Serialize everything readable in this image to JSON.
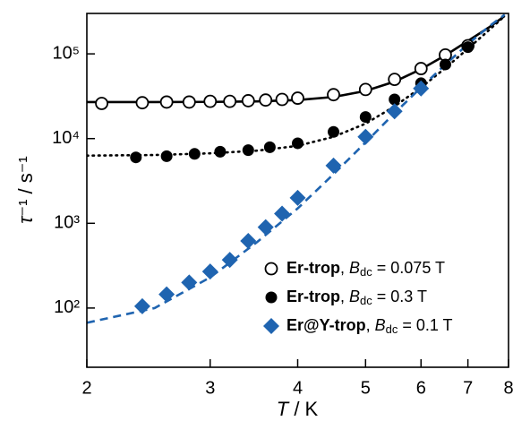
{
  "chart_data": {
    "type": "scatter",
    "xlabel": {
      "symbol": "T",
      "unit": " / K"
    },
    "ylabel": {
      "symbol": "τ",
      "unit": "⁻¹ / s⁻¹"
    },
    "xscale": "log",
    "yscale": "log",
    "xlim": [
      2,
      8
    ],
    "ylim": [
      20,
      300000
    ],
    "xticks": [
      2,
      3,
      4,
      5,
      6,
      7,
      8
    ],
    "yticks": [
      {
        "value": 100,
        "label": "10²"
      },
      {
        "value": 1000,
        "label": "10³"
      },
      {
        "value": 10000,
        "label": "10⁴"
      },
      {
        "value": 100000,
        "label": "10⁵"
      }
    ],
    "legend_position": "lower right",
    "series": [
      {
        "name": "Er-trop",
        "color": "#000000",
        "marker": "open-circle",
        "legend": {
          "sep": ", ",
          "field": "B",
          "sub": "dc",
          "rest": " = 0.075 T"
        },
        "x": [
          2.1,
          2.4,
          2.6,
          2.8,
          3.0,
          3.2,
          3.4,
          3.6,
          3.8,
          4.0,
          4.5,
          5.0,
          5.5,
          6.0,
          6.5,
          7.0
        ],
        "values": [
          26000,
          26500,
          27000,
          27000,
          27500,
          27500,
          28000,
          28500,
          29000,
          30000,
          33000,
          38000,
          50000,
          67000,
          97000,
          125000
        ]
      },
      {
        "name": "Er-trop",
        "color": "#000000",
        "marker": "circle",
        "legend": {
          "sep": ", ",
          "field": "B",
          "sub": "dc",
          "rest": " = 0.3 T"
        },
        "x": [
          2.35,
          2.6,
          2.85,
          3.1,
          3.4,
          3.65,
          4.0,
          4.5,
          5.0,
          5.5,
          6.0,
          6.5,
          7.0
        ],
        "values": [
          6000,
          6200,
          6600,
          7000,
          7300,
          7900,
          8800,
          12000,
          18000,
          29000,
          45000,
          75000,
          120000
        ]
      },
      {
        "name": "Er@Y-trop",
        "color": "#1f64b0",
        "marker": "diamond",
        "legend": {
          "sep": ", ",
          "field": "B",
          "sub": "dc",
          "rest": " = 0.1 T"
        },
        "x": [
          2.4,
          2.6,
          2.8,
          3.0,
          3.2,
          3.4,
          3.6,
          3.8,
          4.0,
          4.5,
          5.0,
          5.5,
          6.0
        ],
        "values": [
          105,
          145,
          200,
          270,
          370,
          620,
          900,
          1300,
          2000,
          4800,
          10500,
          21000,
          39000
        ]
      }
    ],
    "fits": [
      {
        "color": "#000000",
        "dash": "solid",
        "x": [
          2,
          2.5,
          3,
          3.5,
          4,
          4.5,
          5,
          5.5,
          6,
          6.5,
          7,
          7.5,
          7.9
        ],
        "values": [
          27000,
          27000,
          27100,
          27500,
          28500,
          31000,
          36500,
          47000,
          66000,
          96000,
          142000,
          205000,
          280000
        ]
      },
      {
        "color": "#000000",
        "dash": "dotted",
        "x": [
          2,
          2.5,
          3,
          3.5,
          4,
          4.5,
          5,
          5.5,
          6,
          6.5,
          7,
          7.5,
          7.9
        ],
        "values": [
          6300,
          6400,
          6700,
          7200,
          8200,
          10500,
          15000,
          24000,
          40000,
          68000,
          115000,
          190000,
          280000
        ]
      },
      {
        "color": "#1f64b0",
        "dash": "dashed",
        "x": [
          2,
          2.5,
          3,
          3.5,
          4,
          4.5,
          5,
          5.5,
          6,
          6.5,
          7,
          7.5,
          7.9
        ],
        "values": [
          67,
          100,
          230,
          600,
          1500,
          3800,
          9000,
          20000,
          40000,
          75000,
          130000,
          210000,
          290000
        ]
      }
    ]
  }
}
